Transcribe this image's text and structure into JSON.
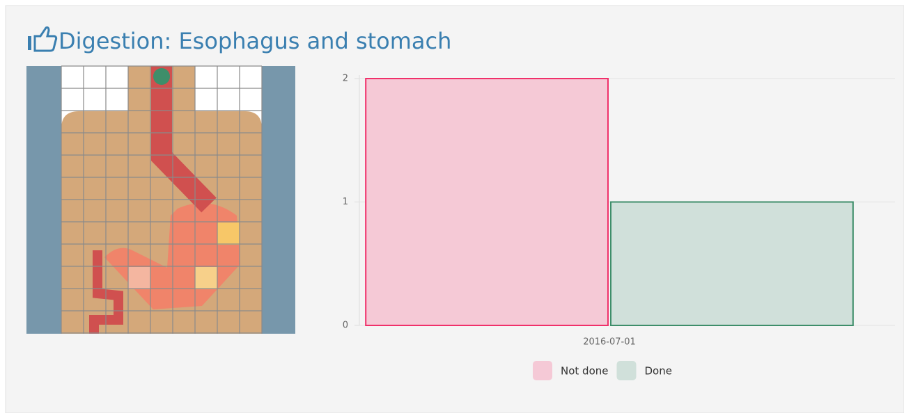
{
  "header": {
    "title": "Digestion: Esophagus and stomach"
  },
  "chart_data": {
    "type": "bar",
    "categories": [
      "2016-07-01"
    ],
    "series": [
      {
        "name": "Not done",
        "color": "#f0306a",
        "fill": "#f5c9d6",
        "values": [
          2
        ]
      },
      {
        "name": "Done",
        "color": "#3e8e6a",
        "fill": "#d0e0da",
        "values": [
          1
        ]
      }
    ],
    "ylim": [
      0,
      2
    ],
    "yticks": [
      0,
      1,
      2
    ],
    "grid": true
  }
}
